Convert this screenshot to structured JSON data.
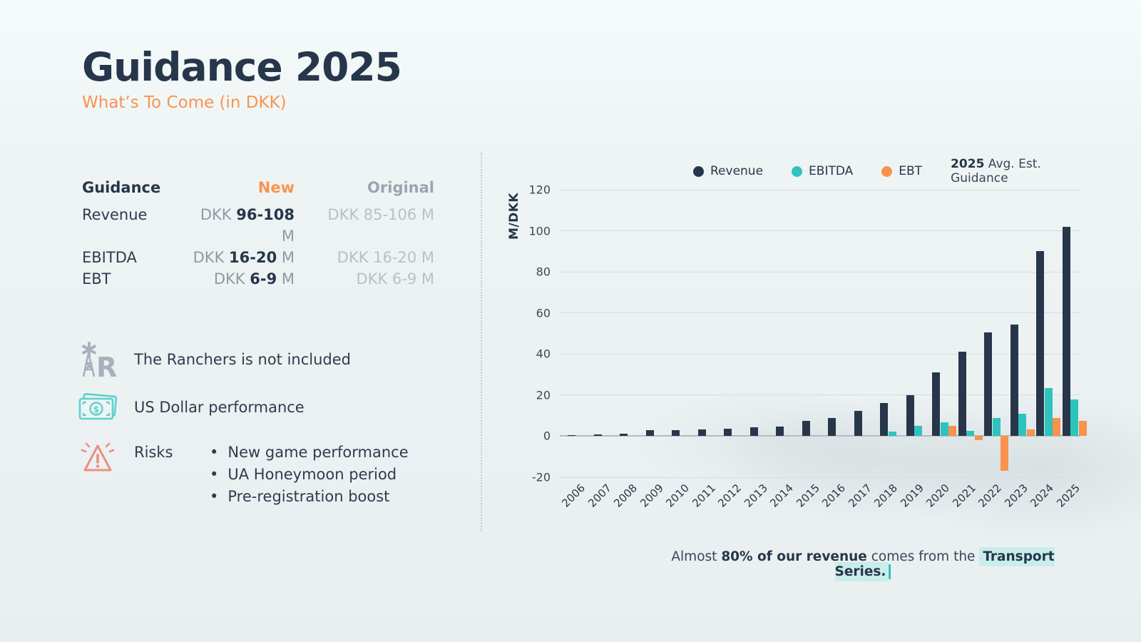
{
  "slide": {
    "title": "Guidance 2025",
    "subtitle": "What’s To Come (in DKK)"
  },
  "guidance_table": {
    "headers": {
      "metric": "Guidance",
      "new": "New",
      "original": "Original"
    },
    "rows": [
      {
        "metric": "Revenue",
        "new_prefix": "DKK ",
        "new_value": "96-108",
        "new_suffix": " M",
        "original": "DKK 85-106 M"
      },
      {
        "metric": "EBITDA",
        "new_prefix": "DKK ",
        "new_value": "16-20",
        "new_suffix": " M",
        "original": "DKK 16-20 M"
      },
      {
        "metric": "EBT",
        "new_prefix": "DKK ",
        "new_value": "6-9",
        "new_suffix": " M",
        "original": "DKK 6-9 M"
      }
    ]
  },
  "notes": {
    "ranchers": {
      "text": "The Ranchers is not included"
    },
    "dollar": {
      "text": "US Dollar performance"
    },
    "risks": {
      "label": "Risks",
      "bullets": [
        "New game performance",
        "UA Honeymoon period",
        "Pre-registration boost"
      ]
    }
  },
  "chart": {
    "legend_note_year": "2025",
    "legend_note_text": " Avg. Est. Guidance"
  },
  "chart_data": {
    "type": "bar",
    "ylabel": "M/DKK",
    "ylim": [
      -20,
      120
    ],
    "yticks": [
      120,
      100,
      80,
      60,
      40,
      20,
      0,
      -20
    ],
    "grid": true,
    "legend_position": "top",
    "categories": [
      2006,
      2007,
      2008,
      2009,
      2010,
      2011,
      2012,
      2013,
      2014,
      2015,
      2016,
      2017,
      2018,
      2019,
      2020,
      2021,
      2022,
      2023,
      2024,
      2025
    ],
    "series": [
      {
        "name": "Revenue",
        "color": "#27364a",
        "values": [
          0.2,
          0.8,
          1.2,
          2.9,
          3.1,
          3.4,
          3.6,
          4.3,
          4.7,
          7.6,
          9,
          12.4,
          16,
          20,
          31,
          41,
          50.5,
          54.5,
          90,
          102
        ]
      },
      {
        "name": "EBITDA",
        "color": "#2ec4bd",
        "values": [
          null,
          null,
          null,
          null,
          null,
          null,
          null,
          null,
          null,
          null,
          null,
          null,
          2.2,
          5,
          6.8,
          2.5,
          9,
          11,
          23.5,
          18
        ]
      },
      {
        "name": "EBT",
        "color": "#f8924c",
        "values": [
          null,
          null,
          null,
          null,
          null,
          null,
          null,
          null,
          null,
          null,
          null,
          null,
          null,
          null,
          4.9,
          -2,
          -17,
          3.3,
          9,
          7.5
        ]
      }
    ],
    "note_2025": "2025 bars are the average of the estimated guidance"
  },
  "footnote": {
    "pre": "Almost ",
    "bold": "80% of our revenue",
    "mid": " comes from the ",
    "highlight": "Transport Series."
  },
  "colors": {
    "navy": "#27364a",
    "teal": "#2ec4bd",
    "orange": "#f8924c",
    "accent_orange": "#f8944f",
    "gray_original": "#9aa5b0",
    "highlight_bg": "#c8edeb"
  }
}
